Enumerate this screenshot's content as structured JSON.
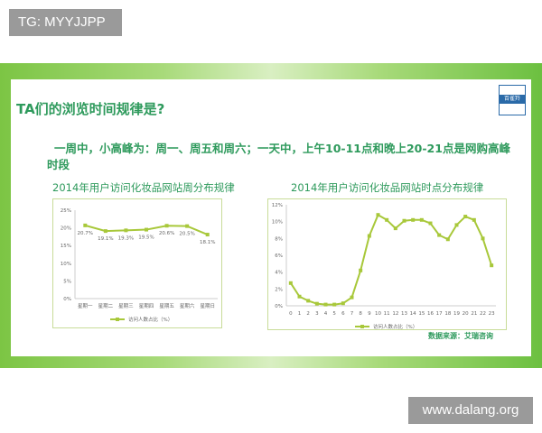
{
  "watermark_top": "TG: MYYJJPP",
  "watermark_bottom": "www.dalang.org",
  "slide": {
    "title": "TA们的浏览时间规律是?",
    "summary": "一周中，小高峰为：周一、周五和周六；一天中，上午10-11点和晚上20-21点是网购高峰时段",
    "logo_text": "百雀羚",
    "source": "数据来源：艾瑞咨询"
  },
  "colors": {
    "line": "#a8c83a",
    "accent": "#2e9a5c",
    "band": "#7cc544"
  },
  "chart_data": [
    {
      "type": "line",
      "title": "2014年用户访问化妆品网站周分布规律",
      "categories": [
        "星期一",
        "星期二",
        "星期三",
        "星期四",
        "星期五",
        "星期六",
        "星期日"
      ],
      "series": [
        {
          "name": "访问人数占比（%）",
          "values": [
            20.7,
            19.1,
            19.3,
            19.5,
            20.6,
            20.5,
            18.1
          ]
        }
      ],
      "data_labels": [
        "20.7%",
        "19.1%",
        "19.3%",
        "19.5%",
        "20.6%",
        "20.5%",
        "18.1%"
      ],
      "yticks": [
        "0%",
        "5%",
        "10%",
        "15%",
        "20%",
        "25%"
      ],
      "ylim": [
        0,
        25
      ],
      "legend": "bottom",
      "grid": false
    },
    {
      "type": "line",
      "title": "2014年用户访问化妆品网站时点分布规律",
      "categories": [
        "0",
        "1",
        "2",
        "3",
        "4",
        "5",
        "6",
        "7",
        "8",
        "9",
        "10",
        "11",
        "12",
        "13",
        "14",
        "15",
        "16",
        "17",
        "18",
        "19",
        "20",
        "21",
        "22",
        "23"
      ],
      "series": [
        {
          "name": "访问人数占比（%）",
          "values": [
            2.7,
            1.1,
            0.6,
            0.25,
            0.15,
            0.15,
            0.3,
            1.0,
            4.2,
            8.3,
            10.8,
            10.2,
            9.2,
            10.1,
            10.2,
            10.2,
            9.8,
            8.4,
            7.9,
            9.6,
            10.6,
            10.2,
            8.0,
            4.8
          ]
        }
      ],
      "yticks": [
        "0%",
        "2%",
        "4%",
        "6%",
        "8%",
        "10%",
        "12%"
      ],
      "ylim": [
        0,
        12
      ],
      "legend": "bottom",
      "grid": false
    }
  ]
}
